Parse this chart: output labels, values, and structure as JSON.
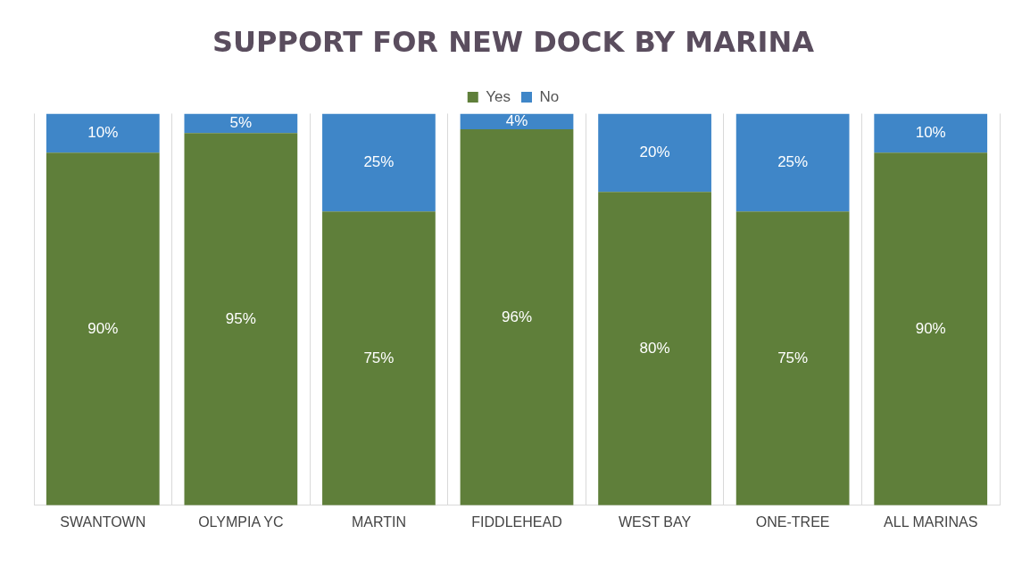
{
  "chart_data": {
    "type": "bar",
    "title": "SUPPORT FOR NEW DOCK BY MARINA",
    "categories": [
      "SWANTOWN",
      "OLYMPIA YC",
      "MARTIN",
      "FIDDLEHEAD",
      "WEST BAY",
      "ONE-TREE",
      "ALL MARINAS"
    ],
    "stacked": true,
    "series": [
      {
        "name": "Yes",
        "color": "#5f7f3a",
        "values": [
          90,
          95,
          75,
          96,
          80,
          75,
          90
        ],
        "value_labels": [
          "90%",
          "95%",
          "75%",
          "96%",
          "80%",
          "75%",
          "90%"
        ]
      },
      {
        "name": "No",
        "color": "#3f86c8",
        "values": [
          10,
          5,
          25,
          4,
          20,
          25,
          10
        ],
        "value_labels": [
          "10%",
          "5%",
          "25%",
          "4%",
          "20%",
          "25%",
          "10%"
        ]
      }
    ],
    "tick_labels": "x",
    "grid": "x",
    "legend": "top"
  }
}
